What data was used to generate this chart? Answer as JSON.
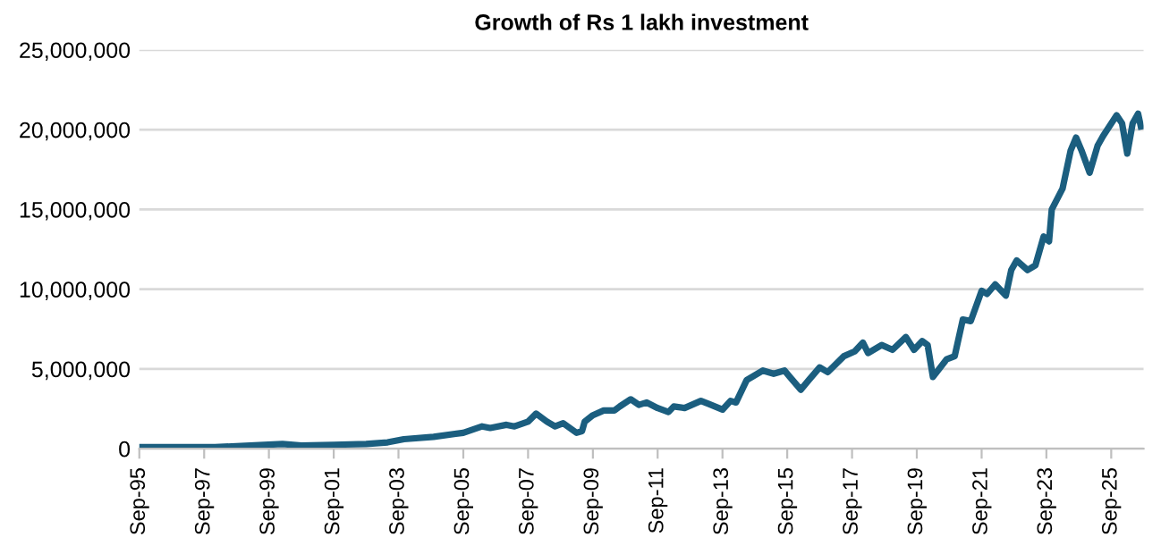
{
  "chart_data": {
    "type": "line",
    "title": "Growth of Rs 1 lakh investment",
    "x": [
      "1995-09",
      "1998-01",
      "1999-02",
      "2000-02",
      "2000-09",
      "2001-09",
      "2002-09",
      "2003-05",
      "2003-11",
      "2004-10",
      "2005-09",
      "2006-04",
      "2006-07",
      "2007-01",
      "2007-04",
      "2007-09",
      "2007-12",
      "2008-04",
      "2008-07",
      "2008-10",
      "2009-03",
      "2009-05",
      "2009-06",
      "2009-09",
      "2010-01",
      "2010-05",
      "2010-07",
      "2010-11",
      "2011-02",
      "2011-05",
      "2011-09",
      "2012-01",
      "2012-03",
      "2012-07",
      "2013-01",
      "2013-04",
      "2013-09",
      "2013-12",
      "2014-02",
      "2014-06",
      "2014-12",
      "2015-04",
      "2015-08",
      "2015-10",
      "2016-02",
      "2016-05",
      "2016-09",
      "2016-12",
      "2017-06",
      "2017-10",
      "2018-01",
      "2018-03",
      "2018-08",
      "2018-12",
      "2019-05",
      "2019-08",
      "2019-11",
      "2020-01",
      "2020-03",
      "2020-08",
      "2020-11",
      "2021-02",
      "2021-05",
      "2021-09",
      "2021-11",
      "2022-02",
      "2022-06",
      "2022-08",
      "2022-10",
      "2023-02",
      "2023-05",
      "2023-08",
      "2023-10",
      "2023-11",
      "2024-03",
      "2024-06",
      "2024-08",
      "2024-10",
      "2025-01",
      "2025-04",
      "2025-06",
      "2025-11",
      "2026-01",
      "2026-03",
      "2026-05",
      "2026-07",
      "2026-08"
    ],
    "series": [
      {
        "color": "#1b5e7f",
        "values": [
          100000,
          100000,
          200000,
          300000,
          200000,
          250000,
          300000,
          400000,
          600000,
          750000,
          1000000,
          1400000,
          1300000,
          1500000,
          1400000,
          1700000,
          2200000,
          1700000,
          1400000,
          1600000,
          1000000,
          1100000,
          1700000,
          2100000,
          2400000,
          2400000,
          2650000,
          3100000,
          2750000,
          2900000,
          2550000,
          2300000,
          2650000,
          2550000,
          3000000,
          2800000,
          2450000,
          3000000,
          2900000,
          4300000,
          4900000,
          4700000,
          4900000,
          4500000,
          3700000,
          4300000,
          5100000,
          4800000,
          5800000,
          6100000,
          6650000,
          6000000,
          6500000,
          6200000,
          7000000,
          6200000,
          6750000,
          6500000,
          4500000,
          5600000,
          5800000,
          8100000,
          8000000,
          9900000,
          9700000,
          10300000,
          9600000,
          11200000,
          11800000,
          11200000,
          11500000,
          13300000,
          13000000,
          15000000,
          16300000,
          18700000,
          19500000,
          18700000,
          17300000,
          19000000,
          19600000,
          20900000,
          20400000,
          18500000,
          20400000,
          21000000,
          20200000
        ]
      }
    ],
    "xlim": [
      "1995-09",
      "2026-09"
    ],
    "xticks": [
      {
        "value": "1995-09",
        "label": "Sep-95"
      },
      {
        "value": "1997-09",
        "label": "Sep-97"
      },
      {
        "value": "1999-09",
        "label": "Sep-99"
      },
      {
        "value": "2001-09",
        "label": "Sep-01"
      },
      {
        "value": "2003-09",
        "label": "Sep-03"
      },
      {
        "value": "2005-09",
        "label": "Sep-05"
      },
      {
        "value": "2007-09",
        "label": "Sep-07"
      },
      {
        "value": "2009-09",
        "label": "Sep-09"
      },
      {
        "value": "2011-09",
        "label": "Sep-11"
      },
      {
        "value": "2013-09",
        "label": "Sep-13"
      },
      {
        "value": "2015-09",
        "label": "Sep-15"
      },
      {
        "value": "2017-09",
        "label": "Sep-17"
      },
      {
        "value": "2019-09",
        "label": "Sep-19"
      },
      {
        "value": "2021-09",
        "label": "Sep-21"
      },
      {
        "value": "2023-09",
        "label": "Sep-23"
      },
      {
        "value": "2025-09",
        "label": "Sep-25"
      }
    ],
    "ylim": [
      0,
      25000000
    ],
    "yticks": [
      {
        "value": 0,
        "label": "0"
      },
      {
        "value": 5000000,
        "label": "5,000,000"
      },
      {
        "value": 10000000,
        "label": "10,000,000"
      },
      {
        "value": 15000000,
        "label": "15,000,000"
      },
      {
        "value": 20000000,
        "label": "20,000,000"
      },
      {
        "value": 25000000,
        "label": "25,000,000"
      }
    ],
    "grid": "y",
    "line_style": "solid",
    "marker": "none"
  }
}
